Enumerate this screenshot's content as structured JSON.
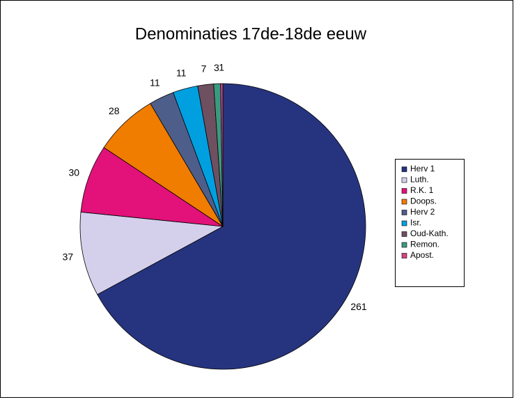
{
  "chart_data": {
    "type": "pie",
    "title": "Denominaties 17de-18de eeuw",
    "categories": [
      "Herv 1",
      "Luth.",
      "R.K. 1",
      "Doops.",
      "Herv 2",
      "Isr.",
      "Oud-Kath.",
      "Remon.",
      "Apost."
    ],
    "values": [
      261,
      37,
      30,
      28,
      11,
      11,
      7,
      3,
      1
    ],
    "colors": [
      "#26347f",
      "#d4d0ec",
      "#e2127a",
      "#f07c00",
      "#4e5e8a",
      "#00a0e0",
      "#6e5060",
      "#3a9a80",
      "#d24484"
    ],
    "legend": "right"
  }
}
